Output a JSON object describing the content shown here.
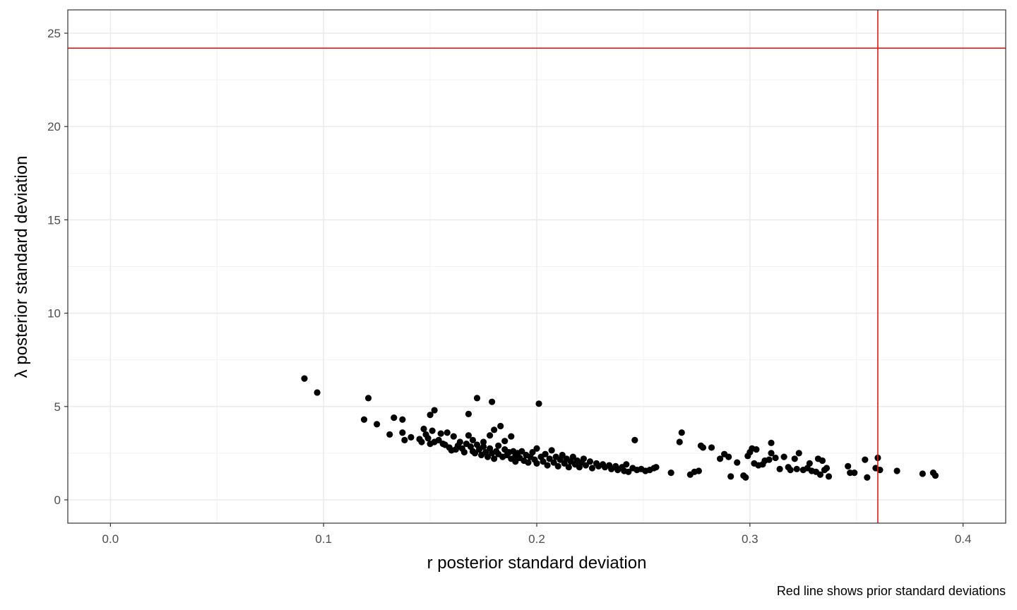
{
  "chart_data": {
    "type": "scatter",
    "title": "",
    "xlabel": "r posterior standard deviation",
    "ylabel": "λ  posterior standard deviation",
    "caption": "Red line shows prior standard deviations",
    "xlim": [
      -0.02,
      0.42
    ],
    "ylim": [
      -1.25,
      26.25
    ],
    "x_ticks": [
      0.0,
      0.1,
      0.2,
      0.3,
      0.4
    ],
    "x_tick_labels": [
      "0.0",
      "0.1",
      "0.2",
      "0.3",
      "0.4"
    ],
    "y_ticks": [
      0,
      5,
      10,
      15,
      20,
      25
    ],
    "y_tick_labels": [
      "0",
      "5",
      "10",
      "15",
      "20",
      "25"
    ],
    "grid": true,
    "reference_lines": {
      "color": "#e41a1c",
      "vline_x": 0.36,
      "hline_y": 24.2
    },
    "point_color": "#000000",
    "points": [
      [
        0.091,
        6.5
      ],
      [
        0.097,
        5.75
      ],
      [
        0.119,
        4.3
      ],
      [
        0.121,
        5.45
      ],
      [
        0.125,
        4.05
      ],
      [
        0.131,
        3.5
      ],
      [
        0.133,
        4.4
      ],
      [
        0.137,
        3.6
      ],
      [
        0.137,
        4.3
      ],
      [
        0.138,
        3.2
      ],
      [
        0.141,
        3.35
      ],
      [
        0.145,
        3.25
      ],
      [
        0.146,
        3.1
      ],
      [
        0.147,
        3.8
      ],
      [
        0.148,
        3.5
      ],
      [
        0.149,
        3.3
      ],
      [
        0.15,
        4.55
      ],
      [
        0.15,
        3.0
      ],
      [
        0.151,
        3.7
      ],
      [
        0.152,
        3.1
      ],
      [
        0.152,
        4.8
      ],
      [
        0.154,
        3.2
      ],
      [
        0.155,
        3.55
      ],
      [
        0.156,
        3.0
      ],
      [
        0.157,
        2.95
      ],
      [
        0.158,
        3.6
      ],
      [
        0.159,
        2.8
      ],
      [
        0.16,
        2.65
      ],
      [
        0.161,
        3.4
      ],
      [
        0.162,
        2.7
      ],
      [
        0.163,
        2.9
      ],
      [
        0.164,
        3.1
      ],
      [
        0.165,
        2.75
      ],
      [
        0.166,
        2.55
      ],
      [
        0.167,
        3.0
      ],
      [
        0.168,
        4.6
      ],
      [
        0.168,
        3.45
      ],
      [
        0.169,
        2.85
      ],
      [
        0.17,
        2.6
      ],
      [
        0.17,
        3.2
      ],
      [
        0.171,
        2.5
      ],
      [
        0.172,
        2.95
      ],
      [
        0.172,
        5.45
      ],
      [
        0.173,
        2.7
      ],
      [
        0.174,
        2.4
      ],
      [
        0.175,
        2.85
      ],
      [
        0.175,
        3.1
      ],
      [
        0.176,
        2.55
      ],
      [
        0.177,
        2.3
      ],
      [
        0.178,
        2.75
      ],
      [
        0.178,
        3.45
      ],
      [
        0.179,
        2.5
      ],
      [
        0.179,
        5.25
      ],
      [
        0.18,
        3.75
      ],
      [
        0.18,
        2.2
      ],
      [
        0.181,
        2.6
      ],
      [
        0.182,
        2.9
      ],
      [
        0.182,
        2.45
      ],
      [
        0.183,
        3.95
      ],
      [
        0.184,
        2.3
      ],
      [
        0.185,
        2.7
      ],
      [
        0.185,
        3.15
      ],
      [
        0.186,
        2.4
      ],
      [
        0.187,
        2.55
      ],
      [
        0.188,
        2.2
      ],
      [
        0.188,
        3.4
      ],
      [
        0.189,
        2.6
      ],
      [
        0.19,
        2.35
      ],
      [
        0.19,
        2.05
      ],
      [
        0.191,
        2.5
      ],
      [
        0.192,
        2.25
      ],
      [
        0.193,
        2.6
      ],
      [
        0.194,
        2.1
      ],
      [
        0.195,
        2.4
      ],
      [
        0.196,
        2.0
      ],
      [
        0.197,
        2.3
      ],
      [
        0.198,
        2.55
      ],
      [
        0.199,
        2.15
      ],
      [
        0.2,
        2.75
      ],
      [
        0.2,
        1.95
      ],
      [
        0.201,
        5.15
      ],
      [
        0.202,
        2.3
      ],
      [
        0.203,
        2.05
      ],
      [
        0.204,
        2.45
      ],
      [
        0.205,
        1.85
      ],
      [
        0.206,
        2.2
      ],
      [
        0.207,
        2.65
      ],
      [
        0.208,
        2.0
      ],
      [
        0.209,
        2.3
      ],
      [
        0.21,
        1.8
      ],
      [
        0.211,
        2.15
      ],
      [
        0.212,
        2.4
      ],
      [
        0.213,
        1.95
      ],
      [
        0.214,
        2.2
      ],
      [
        0.215,
        1.75
      ],
      [
        0.216,
        2.05
      ],
      [
        0.217,
        2.3
      ],
      [
        0.218,
        1.9
      ],
      [
        0.219,
        2.1
      ],
      [
        0.22,
        1.75
      ],
      [
        0.221,
        2.0
      ],
      [
        0.222,
        2.2
      ],
      [
        0.223,
        1.85
      ],
      [
        0.225,
        2.05
      ],
      [
        0.226,
        1.7
      ],
      [
        0.228,
        1.95
      ],
      [
        0.229,
        1.8
      ],
      [
        0.231,
        1.9
      ],
      [
        0.232,
        1.75
      ],
      [
        0.234,
        1.85
      ],
      [
        0.235,
        1.65
      ],
      [
        0.237,
        1.8
      ],
      [
        0.238,
        1.6
      ],
      [
        0.24,
        1.75
      ],
      [
        0.241,
        1.55
      ],
      [
        0.242,
        1.9
      ],
      [
        0.243,
        1.5
      ],
      [
        0.245,
        1.7
      ],
      [
        0.246,
        3.2
      ],
      [
        0.247,
        1.6
      ],
      [
        0.249,
        1.65
      ],
      [
        0.251,
        1.55
      ],
      [
        0.253,
        1.6
      ],
      [
        0.255,
        1.7
      ],
      [
        0.256,
        1.75
      ],
      [
        0.263,
        1.45
      ],
      [
        0.267,
        3.1
      ],
      [
        0.268,
        3.6
      ],
      [
        0.272,
        1.35
      ],
      [
        0.274,
        1.5
      ],
      [
        0.276,
        1.55
      ],
      [
        0.277,
        2.9
      ],
      [
        0.278,
        2.8
      ],
      [
        0.282,
        2.8
      ],
      [
        0.286,
        2.2
      ],
      [
        0.288,
        2.45
      ],
      [
        0.29,
        2.3
      ],
      [
        0.291,
        1.25
      ],
      [
        0.294,
        2.0
      ],
      [
        0.297,
        1.3
      ],
      [
        0.298,
        1.2
      ],
      [
        0.299,
        2.35
      ],
      [
        0.3,
        2.55
      ],
      [
        0.301,
        2.75
      ],
      [
        0.302,
        1.95
      ],
      [
        0.303,
        2.7
      ],
      [
        0.304,
        1.85
      ],
      [
        0.306,
        1.9
      ],
      [
        0.307,
        2.1
      ],
      [
        0.309,
        2.15
      ],
      [
        0.31,
        3.05
      ],
      [
        0.31,
        2.5
      ],
      [
        0.312,
        2.25
      ],
      [
        0.314,
        1.65
      ],
      [
        0.316,
        2.3
      ],
      [
        0.318,
        1.75
      ],
      [
        0.319,
        1.6
      ],
      [
        0.321,
        2.2
      ],
      [
        0.322,
        1.65
      ],
      [
        0.323,
        2.5
      ],
      [
        0.325,
        1.6
      ],
      [
        0.327,
        1.7
      ],
      [
        0.328,
        1.95
      ],
      [
        0.329,
        1.55
      ],
      [
        0.331,
        1.5
      ],
      [
        0.332,
        2.2
      ],
      [
        0.333,
        1.35
      ],
      [
        0.334,
        2.1
      ],
      [
        0.335,
        1.6
      ],
      [
        0.336,
        1.7
      ],
      [
        0.337,
        1.25
      ],
      [
        0.346,
        1.8
      ],
      [
        0.347,
        1.45
      ],
      [
        0.349,
        1.45
      ],
      [
        0.354,
        2.15
      ],
      [
        0.355,
        1.2
      ],
      [
        0.359,
        1.7
      ],
      [
        0.36,
        2.25
      ],
      [
        0.361,
        1.6
      ],
      [
        0.369,
        1.55
      ],
      [
        0.381,
        1.4
      ],
      [
        0.386,
        1.45
      ],
      [
        0.387,
        1.3
      ]
    ]
  }
}
